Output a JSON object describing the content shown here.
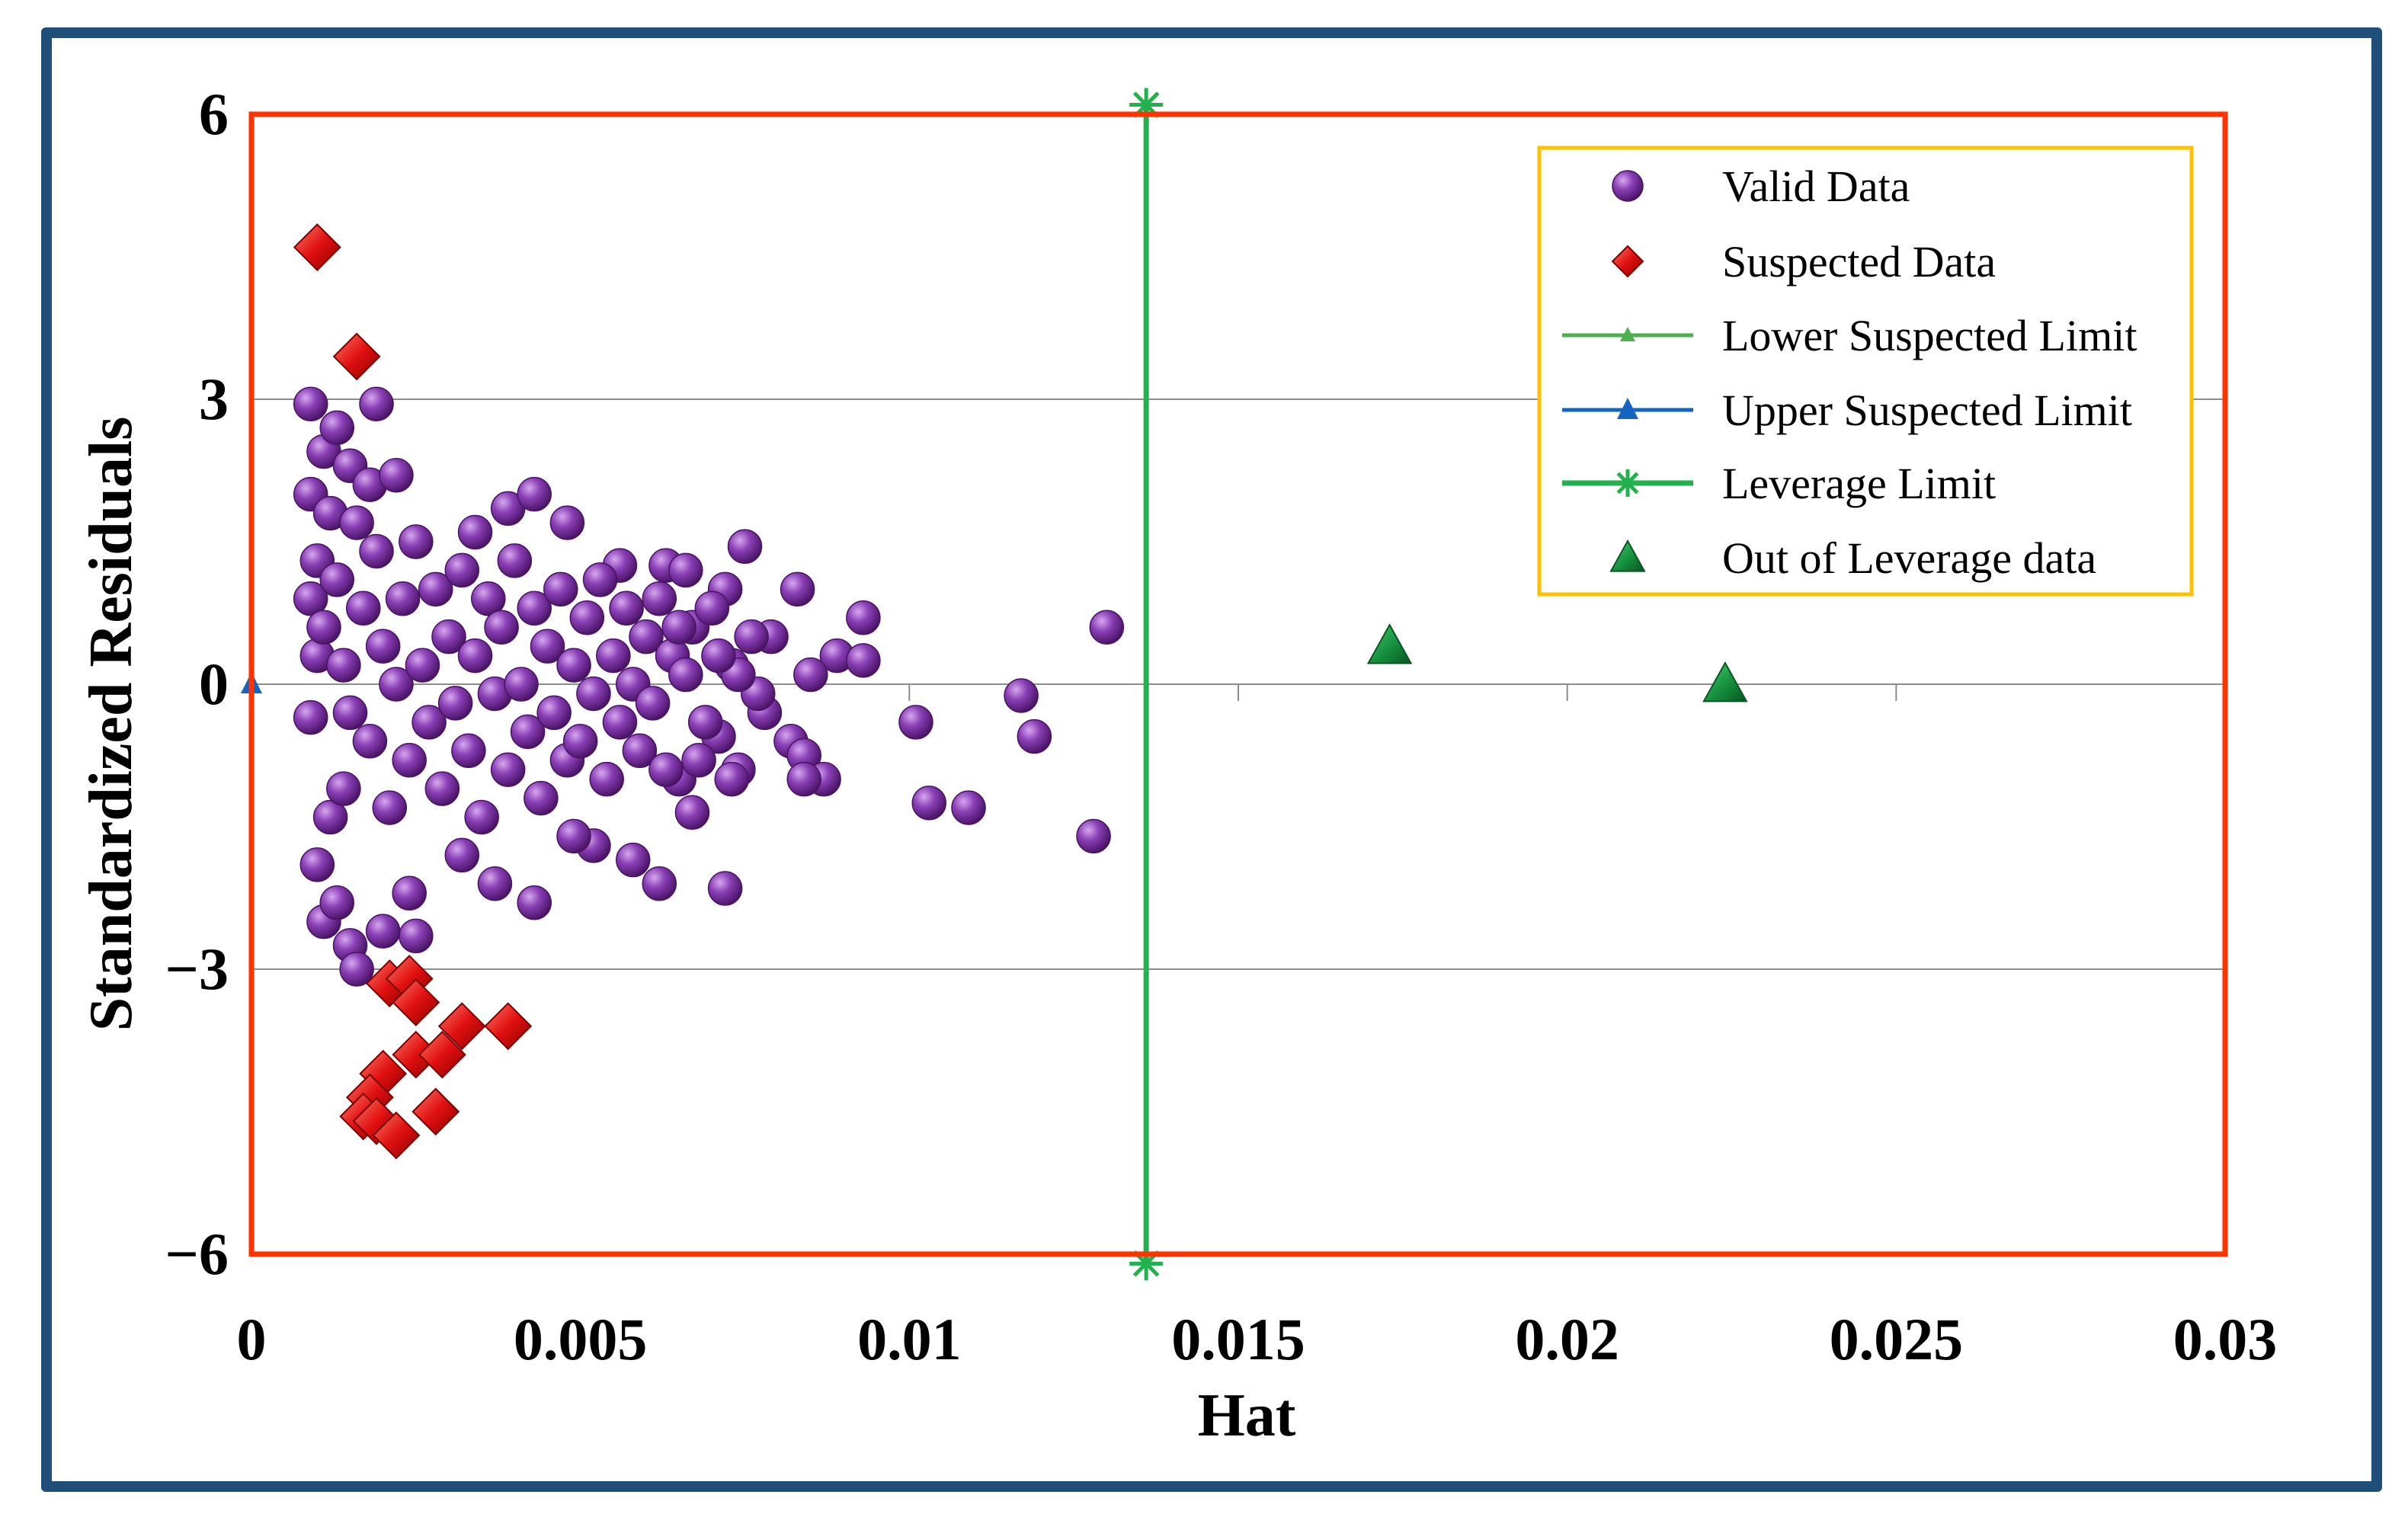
{
  "chart_data": {
    "type": "scatter",
    "title": "",
    "xlabel": "Hat",
    "ylabel": "Standardized Residuals",
    "xlim": [
      0,
      0.03
    ],
    "ylim": [
      -6,
      6
    ],
    "xticks": [
      0,
      0.005,
      0.01,
      0.015,
      0.02,
      0.025,
      0.03
    ],
    "xtick_labels": [
      "0",
      "0.005",
      "0.01",
      "0.015",
      "0.02",
      "0.025",
      "0.03"
    ],
    "yticks": [
      6,
      3,
      0,
      -3,
      -6
    ],
    "ytick_labels": [
      "6",
      "3",
      "0",
      "−3",
      "−6"
    ],
    "gridlines_y": [
      3,
      0,
      -3
    ],
    "legend_position": "top-right",
    "colors": {
      "valid": "#7b2fa0",
      "suspected": "#e01010",
      "lower_limit": "#4caf50",
      "upper_limit": "#1565c0",
      "leverage": "#22b14c",
      "out_of_leverage": "#138a3a",
      "plot_border": "#ff3300",
      "legend_border": "#ffc000",
      "frame": "#1f4e79"
    },
    "series": [
      {
        "name": "Valid Data",
        "marker": "circle",
        "points": [
          [
            0.0009,
            2.95
          ],
          [
            0.0019,
            2.95
          ],
          [
            0.0011,
            2.45
          ],
          [
            0.0013,
            2.7
          ],
          [
            0.0015,
            2.3
          ],
          [
            0.0018,
            2.1
          ],
          [
            0.0022,
            2.2
          ],
          [
            0.0009,
            2.0
          ],
          [
            0.0012,
            1.8
          ],
          [
            0.0016,
            1.7
          ],
          [
            0.0039,
            1.85
          ],
          [
            0.0043,
            2.0
          ],
          [
            0.0048,
            1.7
          ],
          [
            0.0034,
            1.6
          ],
          [
            0.0056,
            1.25
          ],
          [
            0.0063,
            1.25
          ],
          [
            0.0066,
            1.2
          ],
          [
            0.0075,
            1.45
          ],
          [
            0.0072,
            1.0
          ],
          [
            0.0083,
            1.0
          ],
          [
            0.0093,
            0.7
          ],
          [
            0.0089,
            0.3
          ],
          [
            0.0093,
            0.25
          ],
          [
            0.0079,
            0.5
          ],
          [
            0.0085,
            0.1
          ],
          [
            0.0082,
            -0.6
          ],
          [
            0.0084,
            -0.75
          ],
          [
            0.0087,
            -1.0
          ],
          [
            0.0084,
            -1.0
          ],
          [
            0.0074,
            -0.9
          ],
          [
            0.0078,
            -0.3
          ],
          [
            0.0071,
            -0.55
          ],
          [
            0.0067,
            -1.35
          ],
          [
            0.0065,
            -1.0
          ],
          [
            0.0072,
            -2.15
          ],
          [
            0.0062,
            -2.1
          ],
          [
            0.0058,
            -1.85
          ],
          [
            0.0052,
            -1.7
          ],
          [
            0.0049,
            -1.6
          ],
          [
            0.0043,
            -2.3
          ],
          [
            0.0037,
            -2.1
          ],
          [
            0.0032,
            -1.8
          ],
          [
            0.0024,
            -2.2
          ],
          [
            0.0025,
            -2.65
          ],
          [
            0.002,
            -2.6
          ],
          [
            0.0015,
            -2.75
          ],
          [
            0.0016,
            -3.0
          ],
          [
            0.0011,
            -2.5
          ],
          [
            0.0013,
            -2.3
          ],
          [
            0.001,
            -1.9
          ],
          [
            0.0012,
            -1.4
          ],
          [
            0.0014,
            -1.1
          ],
          [
            0.0009,
            -0.35
          ],
          [
            0.001,
            0.3
          ],
          [
            0.001,
            1.3
          ],
          [
            0.0009,
            0.9
          ],
          [
            0.0011,
            0.6
          ],
          [
            0.0013,
            1.1
          ],
          [
            0.0014,
            0.2
          ],
          [
            0.0015,
            -0.3
          ],
          [
            0.0017,
            0.8
          ],
          [
            0.0018,
            -0.6
          ],
          [
            0.0019,
            1.4
          ],
          [
            0.002,
            0.4
          ],
          [
            0.0021,
            -1.3
          ],
          [
            0.0022,
            0.0
          ],
          [
            0.0023,
            0.9
          ],
          [
            0.0024,
            -0.8
          ],
          [
            0.0025,
            1.5
          ],
          [
            0.0026,
            0.2
          ],
          [
            0.0027,
            -0.4
          ],
          [
            0.0028,
            1.0
          ],
          [
            0.0029,
            -1.1
          ],
          [
            0.003,
            0.5
          ],
          [
            0.0031,
            -0.2
          ],
          [
            0.0032,
            1.2
          ],
          [
            0.0033,
            -0.7
          ],
          [
            0.0034,
            0.3
          ],
          [
            0.0035,
            -1.4
          ],
          [
            0.0036,
            0.9
          ],
          [
            0.0037,
            -0.1
          ],
          [
            0.0038,
            0.6
          ],
          [
            0.0039,
            -0.9
          ],
          [
            0.004,
            1.3
          ],
          [
            0.0041,
            0.0
          ],
          [
            0.0042,
            -0.5
          ],
          [
            0.0043,
            0.8
          ],
          [
            0.0044,
            -1.2
          ],
          [
            0.0045,
            0.4
          ],
          [
            0.0046,
            -0.3
          ],
          [
            0.0047,
            1.0
          ],
          [
            0.0048,
            -0.8
          ],
          [
            0.0049,
            0.2
          ],
          [
            0.005,
            -0.6
          ],
          [
            0.0051,
            0.7
          ],
          [
            0.0052,
            -0.1
          ],
          [
            0.0053,
            1.1
          ],
          [
            0.0054,
            -1.0
          ],
          [
            0.0055,
            0.3
          ],
          [
            0.0056,
            -0.4
          ],
          [
            0.0057,
            0.8
          ],
          [
            0.0058,
            0.0
          ],
          [
            0.0059,
            -0.7
          ],
          [
            0.006,
            0.5
          ],
          [
            0.0061,
            -0.2
          ],
          [
            0.0062,
            0.9
          ],
          [
            0.0063,
            -0.9
          ],
          [
            0.0064,
            0.3
          ],
          [
            0.0066,
            0.1
          ],
          [
            0.0067,
            0.6
          ],
          [
            0.0069,
            -0.4
          ],
          [
            0.007,
            0.8
          ],
          [
            0.0073,
            0.2
          ],
          [
            0.0076,
            0.5
          ],
          [
            0.0077,
            -0.1
          ],
          [
            0.0074,
            0.1
          ],
          [
            0.0068,
            -0.8
          ],
          [
            0.0065,
            0.6
          ],
          [
            0.0071,
            0.3
          ],
          [
            0.0073,
            -1.0
          ],
          [
            0.0101,
            -0.4
          ],
          [
            0.0103,
            -1.25
          ],
          [
            0.0109,
            -1.3
          ],
          [
            0.0117,
            -0.12
          ],
          [
            0.0119,
            -0.55
          ],
          [
            0.0128,
            -1.6
          ],
          [
            0.013,
            0.6
          ]
        ]
      },
      {
        "name": "Suspected Data",
        "marker": "diamond",
        "points": [
          [
            0.001,
            4.6
          ],
          [
            0.0016,
            3.45
          ],
          [
            0.0021,
            -3.15
          ],
          [
            0.0024,
            -3.1
          ],
          [
            0.0025,
            -3.35
          ],
          [
            0.0032,
            -3.6
          ],
          [
            0.0039,
            -3.6
          ],
          [
            0.0025,
            -3.9
          ],
          [
            0.0029,
            -3.9
          ],
          [
            0.002,
            -4.1
          ],
          [
            0.0018,
            -4.35
          ],
          [
            0.0017,
            -4.55
          ],
          [
            0.0019,
            -4.6
          ],
          [
            0.0022,
            -4.75
          ],
          [
            0.0028,
            -4.5
          ]
        ]
      },
      {
        "name": "Lower Suspected Limit",
        "marker": "triangle-line",
        "points": []
      },
      {
        "name": "Upper Suspected Limit",
        "marker": "triangle-line",
        "points": [
          [
            0,
            0
          ]
        ]
      },
      {
        "name": "Leverage Limit",
        "marker": "star-line",
        "points": [
          [
            0.0136,
            6.1
          ],
          [
            0.0136,
            -6.1
          ]
        ]
      },
      {
        "name": "Out of Leverage data",
        "marker": "triangle",
        "points": [
          [
            0.0173,
            0.4
          ],
          [
            0.0224,
            0.0
          ]
        ]
      }
    ]
  }
}
